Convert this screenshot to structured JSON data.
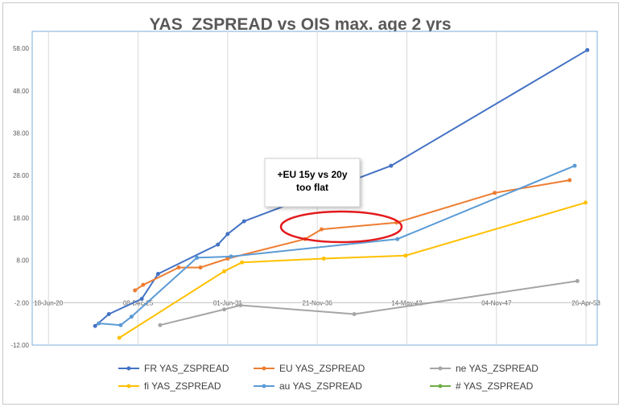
{
  "chart_data": {
    "type": "line",
    "title": "YAS_ZSPREAD vs OIS max. age 2 yrs",
    "xlabel": "",
    "ylabel": "",
    "ylim": [
      -12,
      62
    ],
    "yticks": [
      "58.00",
      "48.00",
      "38.00",
      "28.00",
      "18.00",
      "8.00",
      "-2.00",
      "-12.00"
    ],
    "ytick_values": [
      58,
      48,
      38,
      28,
      18,
      8,
      -2,
      -12
    ],
    "xlim": [
      "2019-06-20",
      "2054-01-01"
    ],
    "xticks": [
      "18-Jun-20",
      "08-Dec-25",
      "01-Jun-31",
      "21-Nov-36",
      "14-May-42",
      "04-Nov-47",
      "26-Apr-53"
    ],
    "xtick_dates": [
      "2020-06-18",
      "2025-12-08",
      "2031-06-01",
      "2036-11-21",
      "2042-05-14",
      "2047-11-04",
      "2053-04-26"
    ],
    "series": [
      {
        "name": "FR YAS_ZSPREAD",
        "color": "#4472c4",
        "points": [
          [
            "2023-04-25",
            -7.5
          ],
          [
            "2024-02-25",
            -4.7
          ],
          [
            "2026-03-01",
            -1.1
          ],
          [
            "2027-03-01",
            4.8
          ],
          [
            "2030-10-25",
            11.7
          ],
          [
            "2031-06-01",
            14.2
          ],
          [
            "2032-06-01",
            17.2
          ],
          [
            "2041-05-25",
            30.3
          ],
          [
            "2053-05-25",
            57.6
          ]
        ]
      },
      {
        "name": "EU YAS_ZSPREAD",
        "color": "#ed7d31",
        "points": [
          [
            "2025-10-01",
            0.9
          ],
          [
            "2026-04-01",
            2.2
          ],
          [
            "2028-06-01",
            6.3
          ],
          [
            "2029-10-01",
            6.3
          ],
          [
            "2031-06-01",
            8.4
          ],
          [
            "2036-02-25",
            13.0
          ],
          [
            "2037-02-25",
            15.3
          ],
          [
            "2041-09-25",
            16.9
          ],
          [
            "2047-09-25",
            23.9
          ],
          [
            "2052-04-25",
            26.9
          ]
        ]
      },
      {
        "name": "ne YAS_ZSPREAD",
        "color": "#a5a5a5",
        "points": [
          [
            "2027-04-15",
            -7.3
          ],
          [
            "2031-03-15",
            -3.6
          ],
          [
            "2032-03-15",
            -2.6
          ],
          [
            "2039-02-25",
            -4.7
          ],
          [
            "2052-10-15",
            3.1
          ]
        ]
      },
      {
        "name": "fi YAS_ZSPREAD",
        "color": "#ffc000",
        "points": [
          [
            "2024-10-15",
            -10.3
          ],
          [
            "2031-03-15",
            5.4
          ],
          [
            "2032-04-15",
            7.5
          ],
          [
            "2037-04-15",
            8.4
          ],
          [
            "2042-04-15",
            9.1
          ],
          [
            "2053-04-15",
            21.6
          ]
        ]
      },
      {
        "name": "au YAS_ZSPREAD",
        "color": "#5b9bd5",
        "points": [
          [
            "2023-07-15",
            -6.9
          ],
          [
            "2024-11-15",
            -7.3
          ],
          [
            "2025-07-15",
            -5.3
          ],
          [
            "2029-07-15",
            8.6
          ],
          [
            "2031-08-15",
            8.9
          ],
          [
            "2041-10-15",
            13.0
          ],
          [
            "2052-08-15",
            30.3
          ]
        ]
      },
      {
        "name": "# YAS_ZSPREAD",
        "color": "#70ad47",
        "points": []
      }
    ],
    "legend_position": "bottom",
    "grid": {
      "x": true,
      "y": false
    },
    "annotation": {
      "lines": [
        "+EU 15y vs 20y",
        "too flat"
      ]
    }
  }
}
